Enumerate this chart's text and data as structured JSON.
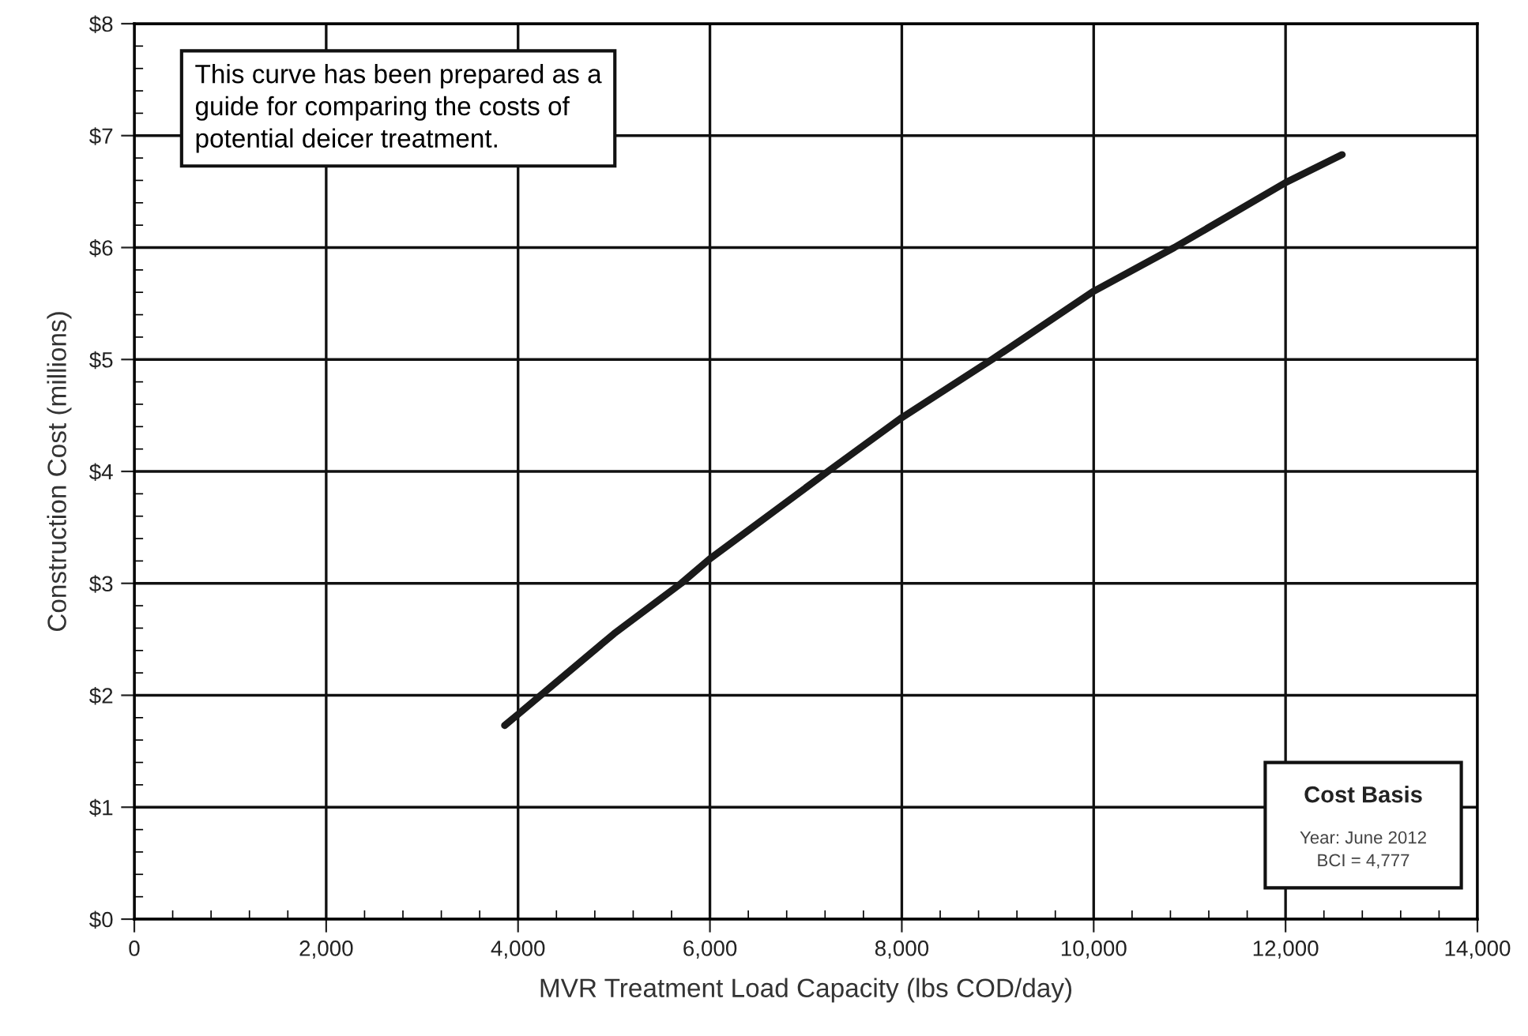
{
  "chart_data": {
    "type": "line",
    "xlabel": "MVR Treatment Load Capacity (lbs COD/day)",
    "ylabel": "Construction Cost (millions)",
    "series": [
      {
        "color": "#1a1a1a",
        "x": [
          3860,
          4000,
          5000,
          5700,
          6000,
          7230,
          8000,
          8940,
          10000,
          10840,
          12000,
          12590
        ],
        "values": [
          1.73,
          1.83,
          2.55,
          3.0,
          3.22,
          4.0,
          4.48,
          5.0,
          5.61,
          6.0,
          6.58,
          6.83
        ]
      }
    ],
    "xlim": [
      0,
      14000
    ],
    "xticks": [
      0,
      {
        "value": 2000,
        "label": "2,000"
      },
      {
        "value": 4000,
        "label": "4,000"
      },
      {
        "value": 6000,
        "label": "6,000"
      },
      {
        "value": 8000,
        "label": "8,000"
      },
      {
        "value": 10000,
        "label": "10,000"
      },
      {
        "value": 12000,
        "label": "12,000"
      },
      {
        "value": 14000,
        "label": "14,000"
      }
    ],
    "ylim": [
      0,
      8
    ],
    "yticks": [
      {
        "value": 0,
        "label": "$0"
      },
      {
        "value": 1,
        "label": "$1"
      },
      {
        "value": 2,
        "label": "$2"
      },
      {
        "value": 3,
        "label": "$3"
      },
      {
        "value": 4,
        "label": "$4"
      },
      {
        "value": 5,
        "label": "$5"
      },
      {
        "value": 6,
        "label": "$6"
      },
      {
        "value": 7,
        "label": "$7"
      },
      {
        "value": 8,
        "label": "$8"
      }
    ],
    "grid": true,
    "marker": "none",
    "line_style": "solid",
    "legend": false,
    "annotations": [
      "This curve has been prepared as a\nguide for comparing the costs of\npotential deicer treatment.",
      "Cost Basis",
      "Year: June 2012\nBCI = 4,777"
    ]
  }
}
